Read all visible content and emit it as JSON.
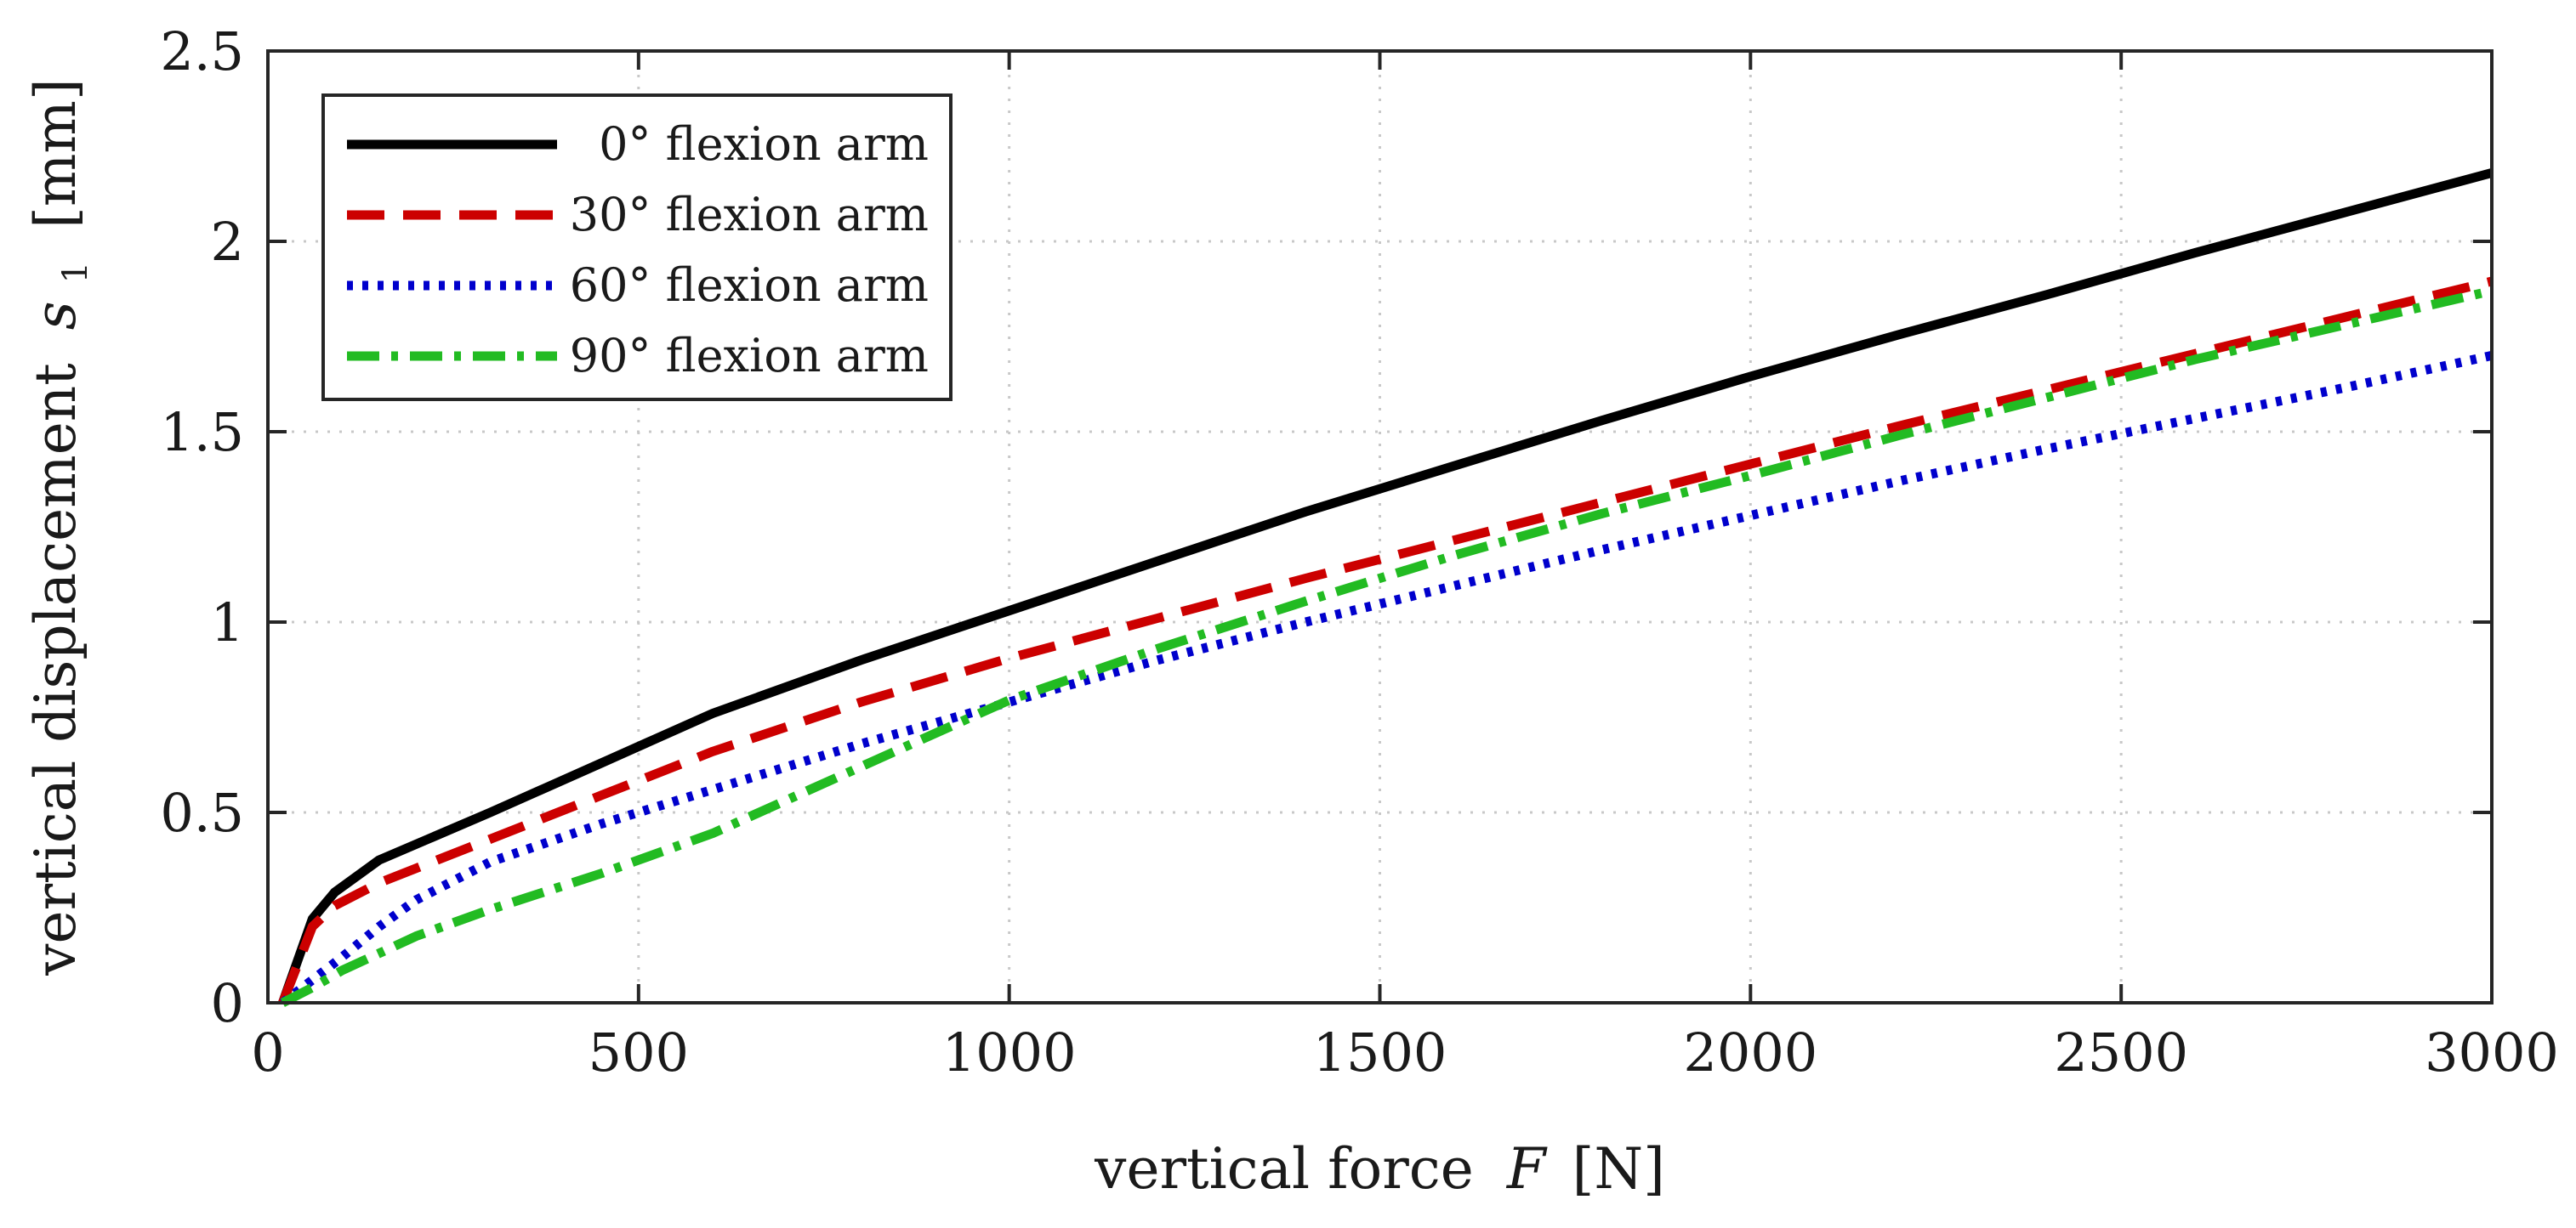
{
  "chart_data": {
    "type": "line",
    "xlabel": "vertical force",
    "xlabel_symbol": "F",
    "xlabel_unit": "[N]",
    "ylabel": "vertical displacement",
    "ylabel_symbol": "s",
    "ylabel_subscript": "1",
    "ylabel_unit": "[mm]",
    "xlim": [
      0,
      3000
    ],
    "ylim": [
      0,
      2.5
    ],
    "xticks": [
      0,
      500,
      1000,
      1500,
      2000,
      2500,
      3000
    ],
    "xtick_labels": [
      "0",
      "500",
      "1000",
      "1500",
      "2000",
      "2500",
      "3000"
    ],
    "yticks": [
      0,
      0.5,
      1,
      1.5,
      2,
      2.5
    ],
    "ytick_labels": [
      "0",
      "0.5",
      "1",
      "1.5",
      "2",
      "2.5"
    ],
    "grid": true,
    "legend_position": "top-left",
    "series": [
      {
        "name": "0° flexion arm",
        "color": "#000000",
        "style": "solid",
        "x": [
          20,
          60,
          90,
          150,
          300,
          450,
          600,
          800,
          1000,
          1200,
          1400,
          1600,
          1800,
          2000,
          2200,
          2400,
          2600,
          2800,
          3000
        ],
        "y": [
          0.0,
          0.22,
          0.29,
          0.375,
          0.5,
          0.63,
          0.76,
          0.9,
          1.03,
          1.16,
          1.29,
          1.41,
          1.53,
          1.645,
          1.755,
          1.86,
          1.97,
          2.075,
          2.18
        ]
      },
      {
        "name": "30° flexion arm",
        "color": "#cc0000",
        "style": "dashed",
        "x": [
          20,
          60,
          90,
          150,
          300,
          450,
          600,
          800,
          1000,
          1200,
          1400,
          1600,
          1800,
          2000,
          2200,
          2400,
          2600,
          2800,
          3000
        ],
        "y": [
          0.0,
          0.2,
          0.255,
          0.315,
          0.43,
          0.545,
          0.66,
          0.79,
          0.905,
          1.01,
          1.115,
          1.215,
          1.315,
          1.415,
          1.515,
          1.61,
          1.705,
          1.8,
          1.895
        ]
      },
      {
        "name": "60° flexion arm",
        "color": "#0000cc",
        "style": "dotted",
        "x": [
          20,
          60,
          100,
          150,
          200,
          300,
          450,
          600,
          800,
          1000,
          1200,
          1400,
          1600,
          1800,
          2000,
          2200,
          2400,
          2600,
          2800,
          3000
        ],
        "y": [
          0.0,
          0.06,
          0.12,
          0.2,
          0.27,
          0.37,
          0.47,
          0.56,
          0.68,
          0.79,
          0.9,
          1.0,
          1.095,
          1.19,
          1.28,
          1.37,
          1.455,
          1.535,
          1.615,
          1.7
        ]
      },
      {
        "name": "90° flexion arm",
        "color": "#22bb22",
        "style": "dashdot",
        "x": [
          20,
          60,
          100,
          150,
          200,
          300,
          450,
          600,
          800,
          1000,
          1200,
          1400,
          1600,
          1800,
          2000,
          2200,
          2400,
          2600,
          2800,
          3000
        ],
        "y": [
          0.0,
          0.04,
          0.085,
          0.13,
          0.175,
          0.245,
          0.34,
          0.445,
          0.62,
          0.795,
          0.93,
          1.055,
          1.175,
          1.285,
          1.385,
          1.49,
          1.59,
          1.69,
          1.78,
          1.87
        ]
      }
    ]
  }
}
